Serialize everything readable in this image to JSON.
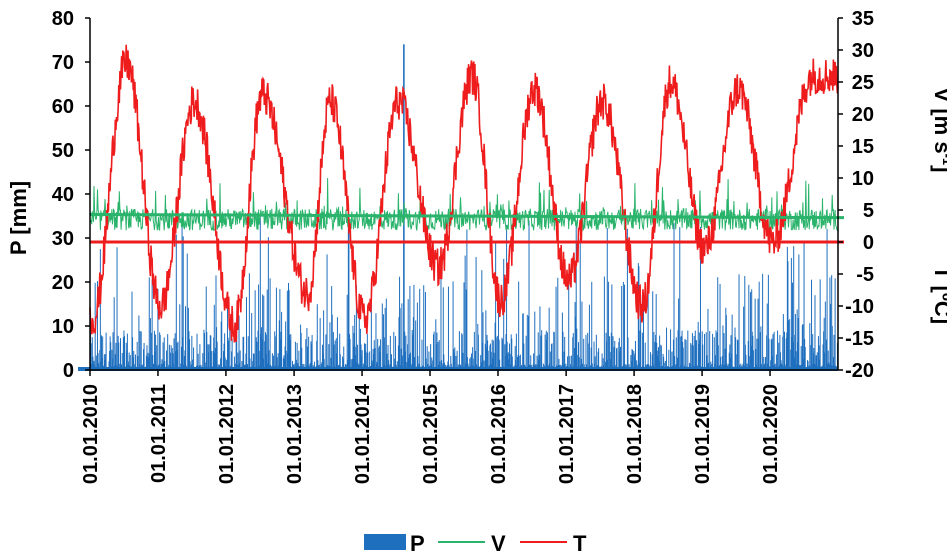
{
  "chart_data": {
    "type": "line",
    "title": "",
    "x_tick_labels": [
      "01.01.2010",
      "01.01.2011",
      "01.01.2012",
      "01.01.2013",
      "01.01.2014",
      "01.01.2015",
      "01.01.2016",
      "01.01.2017",
      "01.01.2018",
      "01.01.2019",
      "01.01.2020"
    ],
    "x_range": [
      "2010-01-01",
      "2020-12-31"
    ],
    "left_axis": {
      "label": "P [mm]",
      "ylim": [
        0,
        80
      ],
      "ticks": [
        "0",
        "10",
        "20",
        "30",
        "40",
        "50",
        "60",
        "70",
        "80"
      ]
    },
    "right_axis": {
      "label_v_base": "V [m s",
      "label_v_sup": "-1",
      "label_v_end": "]",
      "label_t": "T [ºC]",
      "ylim": [
        -20,
        35
      ],
      "ticks": [
        "-20",
        "-15",
        "-10",
        "-5",
        "0",
        "5",
        "10",
        "15",
        "20",
        "25",
        "30",
        "35"
      ]
    },
    "series": [
      {
        "name": "P",
        "kind": "bar",
        "axis": "left",
        "color": "#1f6fbf",
        "typical_range_mm": [
          0,
          20
        ],
        "peak_mm": 74,
        "peak_date": "2014-08"
      },
      {
        "name": "V",
        "kind": "line",
        "axis": "right",
        "color": "#2ab36b",
        "mean": 3.5,
        "range": [
          1,
          10
        ],
        "trend": [
          {
            "x": "2010-01-01",
            "y": 4.3
          },
          {
            "x": "2020-12-31",
            "y": 3.8
          }
        ]
      },
      {
        "name": "T",
        "kind": "line",
        "axis": "right",
        "color": "#ee1c1c",
        "reference_line": 0,
        "annual_summer_peaks": [
          {
            "x": "2010-07",
            "y": 28
          },
          {
            "x": "2011-07",
            "y": 22
          },
          {
            "x": "2012-07",
            "y": 23
          },
          {
            "x": "2013-07",
            "y": 22
          },
          {
            "x": "2014-07",
            "y": 22
          },
          {
            "x": "2015-08",
            "y": 26
          },
          {
            "x": "2016-07",
            "y": 24
          },
          {
            "x": "2017-07",
            "y": 22
          },
          {
            "x": "2018-07",
            "y": 25
          },
          {
            "x": "2019-07",
            "y": 24
          },
          {
            "x": "2020-08",
            "y": 26
          }
        ],
        "annual_winter_minima": [
          {
            "x": "2010-01",
            "y": -12
          },
          {
            "x": "2011-01",
            "y": -10
          },
          {
            "x": "2012-02",
            "y": -13
          },
          {
            "x": "2013-03",
            "y": -8
          },
          {
            "x": "2014-01",
            "y": -12
          },
          {
            "x": "2015-02",
            "y": -4
          },
          {
            "x": "2016-01",
            "y": -9
          },
          {
            "x": "2017-01",
            "y": -6
          },
          {
            "x": "2018-02",
            "y": -10
          },
          {
            "x": "2019-01",
            "y": -1
          },
          {
            "x": "2020-01",
            "y": 0
          }
        ]
      }
    ],
    "legend": {
      "position": "bottom",
      "items": [
        "P",
        "V",
        "T"
      ]
    }
  }
}
